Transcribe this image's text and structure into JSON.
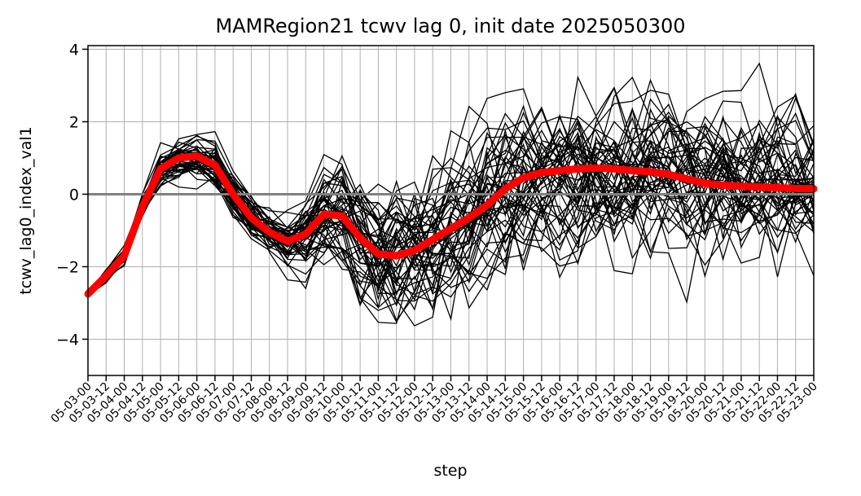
{
  "chart_data": {
    "type": "line",
    "title": "MAMRegion21 tcwv lag 0, init date 2025050300",
    "xlabel": "step",
    "ylabel": "tcwv_lag0_index_val1",
    "ylim": [
      -5,
      4.1
    ],
    "yticks": [
      -4,
      -2,
      0,
      2,
      4
    ],
    "grid": true,
    "categories": [
      "05-03-00",
      "05-03-12",
      "05-04-00",
      "05-04-12",
      "05-05-00",
      "05-05-12",
      "05-06-00",
      "05-06-12",
      "05-07-00",
      "05-07-12",
      "05-08-00",
      "05-08-12",
      "05-09-00",
      "05-09-12",
      "05-10-00",
      "05-10-12",
      "05-11-00",
      "05-11-12",
      "05-12-00",
      "05-12-12",
      "05-13-00",
      "05-13-12",
      "05-14-00",
      "05-14-12",
      "05-15-00",
      "05-15-12",
      "05-16-00",
      "05-16-12",
      "05-17-00",
      "05-17-12",
      "05-18-00",
      "05-18-12",
      "05-19-00",
      "05-19-12",
      "05-20-00",
      "05-20-12",
      "05-21-00",
      "05-21-12",
      "05-22-00",
      "05-22-12",
      "05-23-00"
    ],
    "ensemble_member_count": 50,
    "ensemble_color": "#000000",
    "mean_color": "#ff0000",
    "zero_line_color": "#808080",
    "ensemble_mean": [
      -2.75,
      -2.25,
      -1.7,
      -0.35,
      0.7,
      1.0,
      1.05,
      0.8,
      0.0,
      -0.65,
      -1.05,
      -1.3,
      -1.1,
      -0.55,
      -0.6,
      -1.2,
      -1.65,
      -1.7,
      -1.55,
      -1.25,
      -0.95,
      -0.65,
      -0.3,
      0.15,
      0.45,
      0.6,
      0.65,
      0.7,
      0.72,
      0.7,
      0.65,
      0.62,
      0.55,
      0.42,
      0.3,
      0.25,
      0.22,
      0.2,
      0.18,
      0.16,
      0.15
    ],
    "ensemble_spread": [
      0.02,
      0.08,
      0.12,
      0.15,
      0.22,
      0.25,
      0.28,
      0.3,
      0.28,
      0.3,
      0.32,
      0.38,
      0.6,
      0.75,
      0.8,
      0.85,
      0.9,
      0.95,
      1.0,
      1.05,
      1.05,
      1.1,
      1.1,
      1.1,
      1.1,
      1.1,
      1.1,
      1.1,
      1.05,
      1.05,
      1.05,
      1.05,
      1.05,
      1.05,
      1.05,
      1.0,
      1.0,
      1.0,
      1.0,
      1.0,
      1.0
    ]
  }
}
